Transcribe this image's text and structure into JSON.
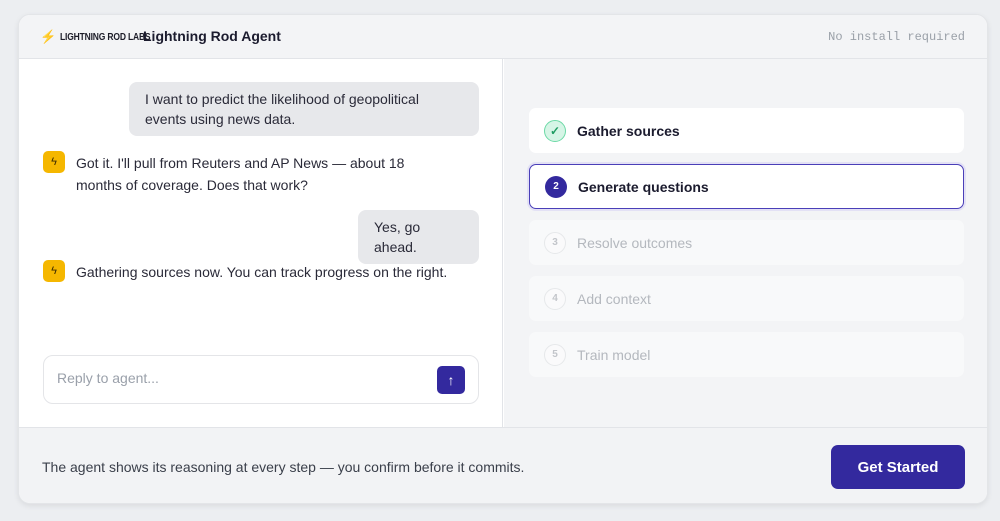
{
  "header": {
    "brand": "LIGHTNING ROD LABS",
    "title": "Lightning Rod Agent",
    "note": "No install required"
  },
  "chat": {
    "messages": [
      {
        "role": "user",
        "text": "I want to predict the likelihood of geopolitical events using news data."
      },
      {
        "role": "agent",
        "text": "Got it. I'll pull from Reuters and AP News — about 18 months of coverage. Does that work?"
      },
      {
        "role": "user",
        "text": "Yes, go ahead."
      },
      {
        "role": "agent",
        "text": "Gathering sources now. You can track progress on the right."
      }
    ],
    "input_placeholder": "Reply to agent..."
  },
  "steps": [
    {
      "num": "✓",
      "label": "Gather sources",
      "status": "done"
    },
    {
      "num": "2",
      "label": "Generate questions",
      "status": "active"
    },
    {
      "num": "3",
      "label": "Resolve outcomes",
      "status": "pending"
    },
    {
      "num": "4",
      "label": "Add context",
      "status": "pending"
    },
    {
      "num": "5",
      "label": "Train model",
      "status": "pending"
    }
  ],
  "footer": {
    "text": "The agent shows its reasoning at every step — you confirm before it commits.",
    "cta": "Get Started"
  },
  "colors": {
    "accent": "#33299e",
    "brand_yellow": "#f5b700",
    "success": "#6cd9a6"
  }
}
